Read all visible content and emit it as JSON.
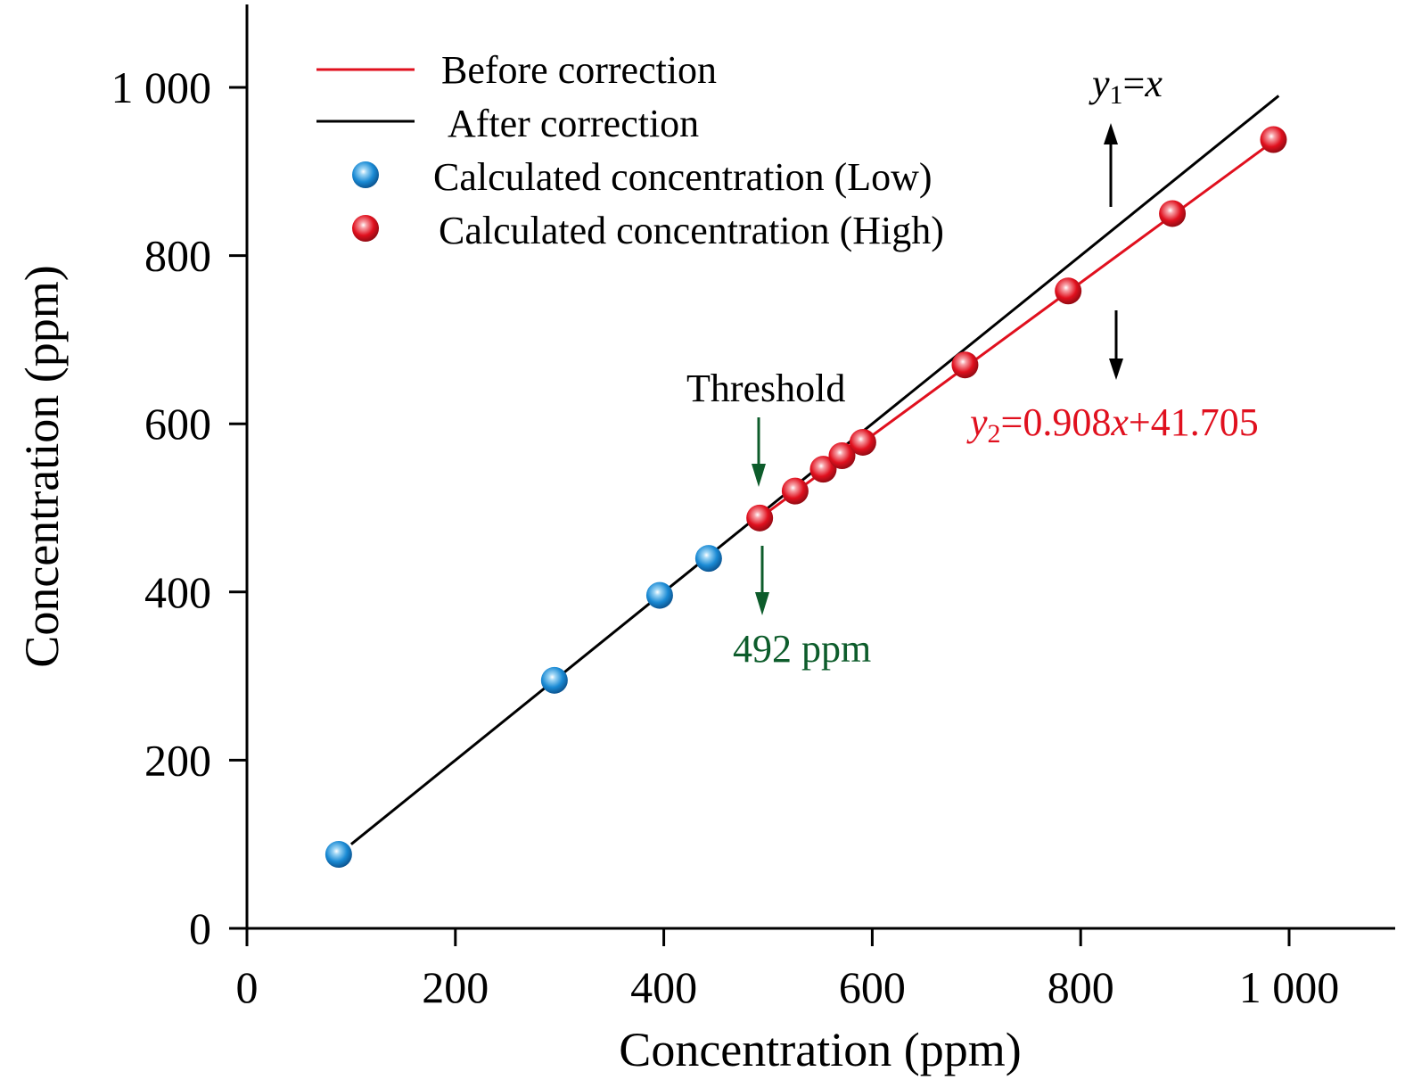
{
  "chart_data": {
    "type": "scatter",
    "xlabel": "Concentration (ppm)",
    "ylabel": "Concentration (ppm)",
    "xlim": [
      0,
      1100
    ],
    "ylim": [
      0,
      1100
    ],
    "xticks": [
      0,
      200,
      400,
      600,
      800,
      1000
    ],
    "yticks": [
      0,
      200,
      400,
      600,
      800,
      1000
    ],
    "xtick_labels": [
      "0",
      "200",
      "400",
      "600",
      "800",
      "1 000"
    ],
    "ytick_labels": [
      "0",
      "200",
      "400",
      "600",
      "800",
      "1 000"
    ],
    "grid": false,
    "legend_placement": "top-left",
    "legend": {
      "before": "Before correction",
      "after": "After correction",
      "low": "Calculated concentration (Low)",
      "high": "Calculated concentration (High)"
    },
    "lines": [
      {
        "key": "after",
        "color": "#000000",
        "x": [
          100,
          990
        ],
        "y": [
          100,
          990
        ]
      },
      {
        "key": "before",
        "color": "#e0101e",
        "x": [
          492,
          985
        ],
        "y": [
          488,
          936
        ]
      }
    ],
    "series": [
      {
        "key": "low",
        "color": "#1a8ad4",
        "x": [
          88,
          295,
          396,
          443
        ],
        "y": [
          88,
          295,
          396,
          440
        ]
      },
      {
        "key": "high",
        "color": "#e0101e",
        "x": [
          492,
          526,
          553,
          571,
          591,
          689,
          788,
          888,
          985
        ],
        "y": [
          488,
          520,
          546,
          562,
          578,
          670,
          758,
          850,
          938
        ]
      }
    ],
    "annotations": {
      "threshold_label": "Threshold",
      "threshold_value": "492 ppm",
      "threshold_color": "#0d5c2b",
      "eq1": {
        "y": "y",
        "sub": "1",
        "rest": "=",
        "x": "x"
      },
      "eq2": {
        "y": "y",
        "sub": "2",
        "rest": "=0.908",
        "x": "x",
        "tail": "+41.705"
      },
      "eq2_color": "#e0101e"
    }
  }
}
